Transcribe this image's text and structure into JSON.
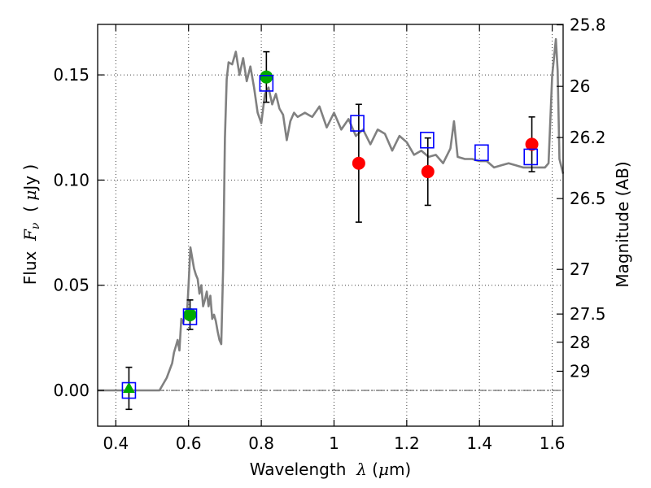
{
  "chart_data": {
    "type": "scatter",
    "xlabel": {
      "pre": "Wavelength  ",
      "sym": "λ",
      "open": " (",
      "mu": "μ",
      "unit": "m)"
    },
    "ylabel": {
      "pre": "Flux  ",
      "F": "F",
      "nu": "ν",
      "open": "  ( ",
      "mu": "μ",
      "unit": "Jy )"
    },
    "y2label": "Magnitude (AB)",
    "xlim": [
      0.35,
      1.63
    ],
    "ylim": [
      -0.017,
      0.174
    ],
    "x_ticks": [
      0.4,
      0.6,
      0.8,
      1.0,
      1.2,
      1.4,
      1.6
    ],
    "x_tick_labels": [
      "0.4",
      "0.6",
      "0.8",
      "1",
      "1.2",
      "1.4",
      "1.6"
    ],
    "y_ticks": [
      0.0,
      0.05,
      0.1,
      0.15
    ],
    "y_tick_labels": [
      "0.00",
      "0.05",
      "0.10",
      "0.15"
    ],
    "mag_ticks": [
      25.8,
      26,
      26.2,
      26.5,
      27,
      27.5,
      28,
      29
    ],
    "mag_tick_labels": [
      "25.8",
      "26",
      "26.2",
      "26.5",
      "27",
      "27.5",
      "28",
      "29"
    ],
    "grid": true,
    "zero_line": true,
    "colors": {
      "model": "#808080",
      "green": "#00aa00",
      "red": "#ff0000",
      "box": "#0000ff",
      "err": "#000000"
    },
    "model_spectrum": {
      "x": [
        0.35,
        0.5,
        0.52,
        0.54,
        0.555,
        0.56,
        0.565,
        0.57,
        0.575,
        0.58,
        0.585,
        0.59,
        0.595,
        0.6,
        0.605,
        0.61,
        0.615,
        0.62,
        0.625,
        0.63,
        0.635,
        0.64,
        0.645,
        0.65,
        0.655,
        0.66,
        0.665,
        0.67,
        0.675,
        0.68,
        0.685,
        0.69,
        0.695,
        0.7,
        0.705,
        0.71,
        0.72,
        0.73,
        0.74,
        0.75,
        0.76,
        0.77,
        0.78,
        0.79,
        0.8,
        0.81,
        0.82,
        0.83,
        0.84,
        0.85,
        0.86,
        0.87,
        0.88,
        0.89,
        0.9,
        0.92,
        0.94,
        0.96,
        0.98,
        1.0,
        1.02,
        1.04,
        1.06,
        1.08,
        1.1,
        1.12,
        1.14,
        1.16,
        1.18,
        1.2,
        1.22,
        1.24,
        1.26,
        1.28,
        1.3,
        1.32,
        1.33,
        1.34,
        1.36,
        1.38,
        1.4,
        1.42,
        1.44,
        1.46,
        1.48,
        1.5,
        1.52,
        1.54,
        1.56,
        1.58,
        1.59,
        1.6,
        1.605,
        1.61,
        1.615,
        1.62,
        1.63
      ],
      "y": [
        0.0,
        0.0,
        0.0,
        0.006,
        0.013,
        0.018,
        0.021,
        0.024,
        0.019,
        0.034,
        0.032,
        0.036,
        0.034,
        0.05,
        0.068,
        0.063,
        0.058,
        0.055,
        0.053,
        0.046,
        0.05,
        0.04,
        0.043,
        0.047,
        0.04,
        0.045,
        0.034,
        0.036,
        0.033,
        0.028,
        0.024,
        0.022,
        0.058,
        0.12,
        0.148,
        0.156,
        0.155,
        0.161,
        0.15,
        0.158,
        0.147,
        0.154,
        0.144,
        0.132,
        0.127,
        0.141,
        0.144,
        0.136,
        0.141,
        0.134,
        0.131,
        0.119,
        0.128,
        0.132,
        0.13,
        0.132,
        0.13,
        0.135,
        0.125,
        0.132,
        0.124,
        0.129,
        0.121,
        0.124,
        0.117,
        0.124,
        0.122,
        0.114,
        0.121,
        0.118,
        0.112,
        0.114,
        0.111,
        0.112,
        0.108,
        0.115,
        0.128,
        0.111,
        0.11,
        0.11,
        0.109,
        0.109,
        0.106,
        0.107,
        0.108,
        0.107,
        0.106,
        0.106,
        0.106,
        0.106,
        0.108,
        0.15,
        0.158,
        0.167,
        0.152,
        0.11,
        0.103
      ]
    },
    "series": [
      {
        "marker": "triangle",
        "color": "green",
        "x": [
          0.436
        ],
        "y": [
          0.001
        ],
        "err": [
          0.01
        ]
      },
      {
        "marker": "circle",
        "color": "green",
        "x": [
          0.604,
          0.814
        ],
        "y": [
          0.036,
          0.149
        ],
        "err": [
          0.007,
          0.012
        ]
      },
      {
        "marker": "circle",
        "color": "red",
        "x": [
          1.068,
          1.258,
          1.544
        ],
        "y": [
          0.108,
          0.104,
          0.117
        ],
        "err": [
          0.028,
          0.016,
          0.013
        ]
      },
      {
        "marker": "square",
        "color": "box",
        "x": [
          0.436,
          0.604,
          0.814,
          1.064,
          1.256,
          1.406,
          1.541
        ],
        "y": [
          0.0,
          0.035,
          0.146,
          0.127,
          0.119,
          0.113,
          0.111
        ]
      }
    ]
  }
}
